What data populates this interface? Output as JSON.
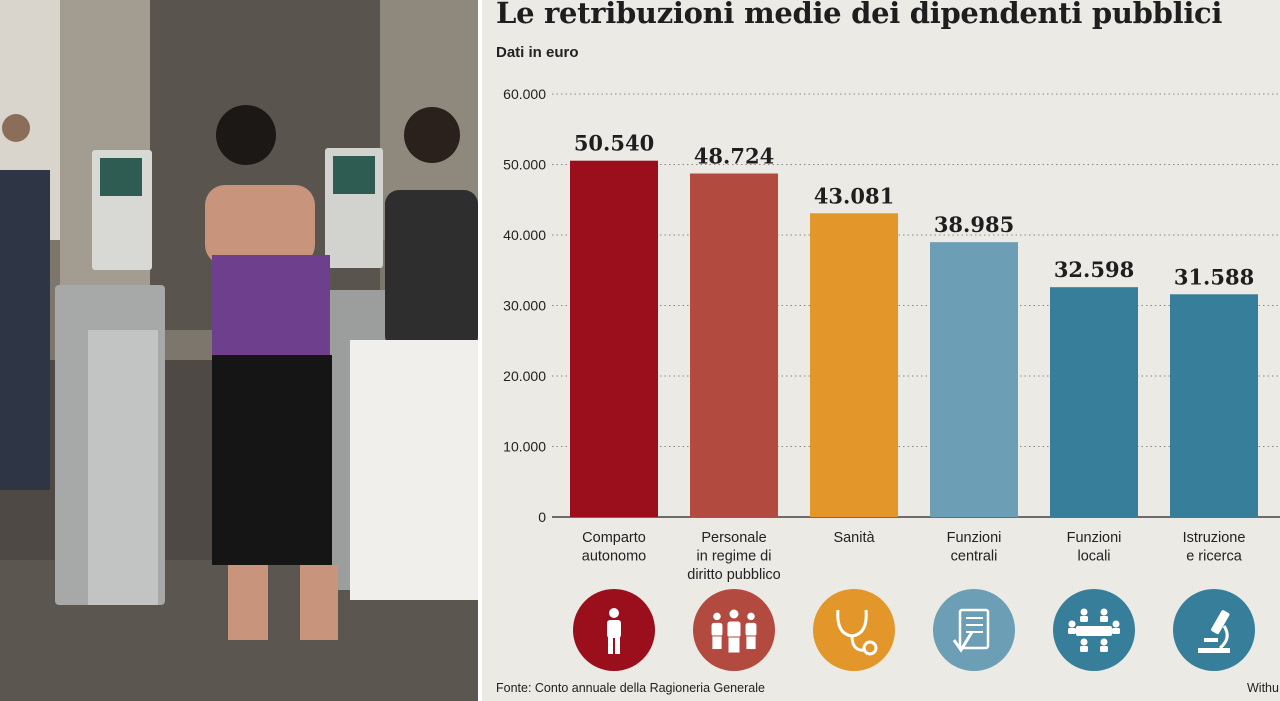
{
  "chart_data": {
    "type": "bar",
    "title": "Le retribuzioni medie dei dipendenti pubblici",
    "subtitle": "Dati in euro",
    "categories": [
      [
        "Comparto",
        "autonomo"
      ],
      [
        "Personale",
        "in regime di",
        "diritto pubblico"
      ],
      [
        "Sanità"
      ],
      [
        "Funzioni",
        "centrali"
      ],
      [
        "Funzioni",
        "locali"
      ],
      [
        "Istruzione",
        "e ricerca"
      ]
    ],
    "values": [
      50540,
      48724,
      43081,
      38985,
      32598,
      31588
    ],
    "value_labels": [
      "50.540",
      "48.724",
      "43.081",
      "38.985",
      "32.598",
      "31.588"
    ],
    "ylim": [
      0,
      60000
    ],
    "yticks": [
      0,
      10000,
      20000,
      30000,
      40000,
      50000,
      60000
    ],
    "ytick_labels": [
      "0",
      "10.000",
      "20.000",
      "30.000",
      "40.000",
      "50.000",
      "60.000"
    ],
    "bar_colors": [
      "#9b0e1c",
      "#b34a40",
      "#e3962a",
      "#6c9eb6",
      "#367e9a",
      "#367e9a"
    ],
    "icons": [
      "person-icon",
      "group-icon",
      "stethoscope-icon",
      "document-check-icon",
      "meeting-icon",
      "microscope-icon"
    ],
    "grid": "horizontal-dotted",
    "source": "Fonte: Conto annuale della Ragioneria Generale",
    "credit": "Withu"
  }
}
